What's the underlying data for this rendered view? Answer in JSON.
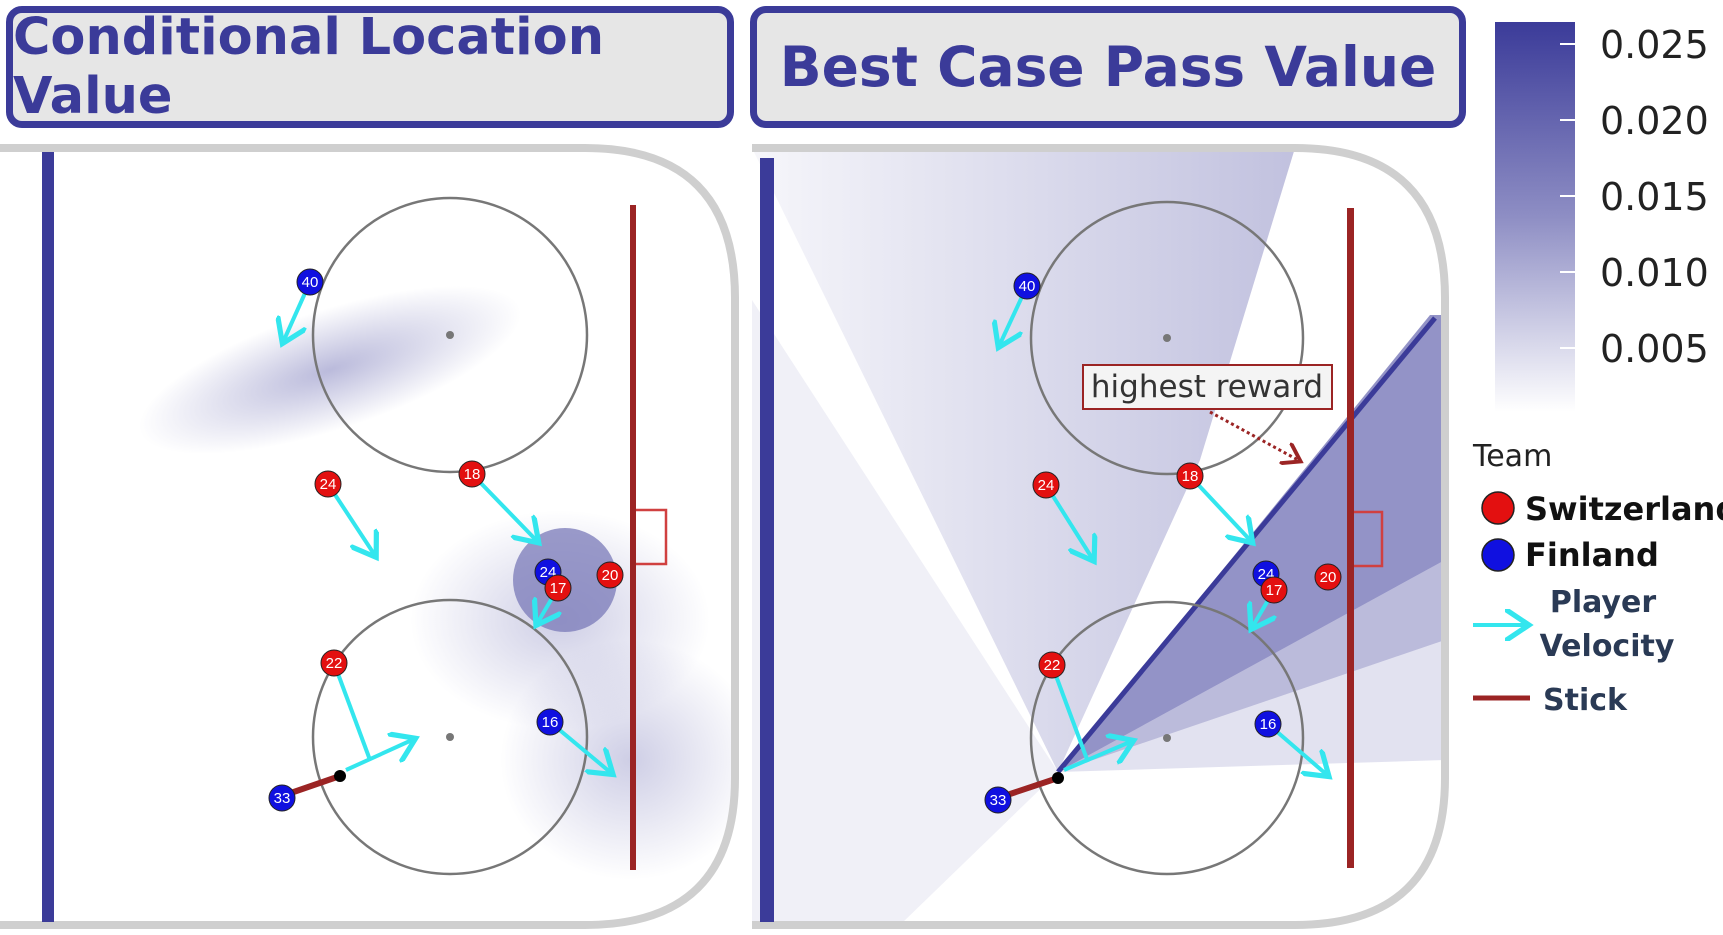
{
  "panels": {
    "left": {
      "title": "Conditional Location Value"
    },
    "right": {
      "title": "Best Case Pass Value"
    }
  },
  "annotation": {
    "text": "highest reward"
  },
  "colorbar": {
    "ticks": [
      "0.025",
      "0.020",
      "0.015",
      "0.010",
      "0.005"
    ],
    "color_high": "#3b3b99",
    "color_low": "#ffffff"
  },
  "legend": {
    "title": "Team",
    "teams": [
      {
        "label": "Switzerland",
        "color": "#e31010"
      },
      {
        "label": "Finland",
        "color": "#1010e0"
      }
    ],
    "velocity_label_1": "Player",
    "velocity_label_2": "Velocity",
    "velocity_color": "#33e6ee",
    "stick_label": "Stick",
    "stick_color": "#9b2424"
  },
  "players": {
    "left": [
      {
        "num": "40",
        "team": "Finland"
      },
      {
        "num": "24",
        "team": "Switzerland"
      },
      {
        "num": "18",
        "team": "Switzerland"
      },
      {
        "num": "24",
        "team": "Finland"
      },
      {
        "num": "17",
        "team": "Switzerland"
      },
      {
        "num": "20",
        "team": "Switzerland"
      },
      {
        "num": "22",
        "team": "Switzerland"
      },
      {
        "num": "16",
        "team": "Finland"
      },
      {
        "num": "33",
        "team": "Finland"
      }
    ],
    "right": [
      {
        "num": "40",
        "team": "Finland"
      },
      {
        "num": "24",
        "team": "Switzerland"
      },
      {
        "num": "18",
        "team": "Switzerland"
      },
      {
        "num": "24",
        "team": "Finland"
      },
      {
        "num": "17",
        "team": "Switzerland"
      },
      {
        "num": "20",
        "team": "Switzerland"
      },
      {
        "num": "22",
        "team": "Switzerland"
      },
      {
        "num": "16",
        "team": "Finland"
      },
      {
        "num": "33",
        "team": "Finland"
      }
    ]
  }
}
